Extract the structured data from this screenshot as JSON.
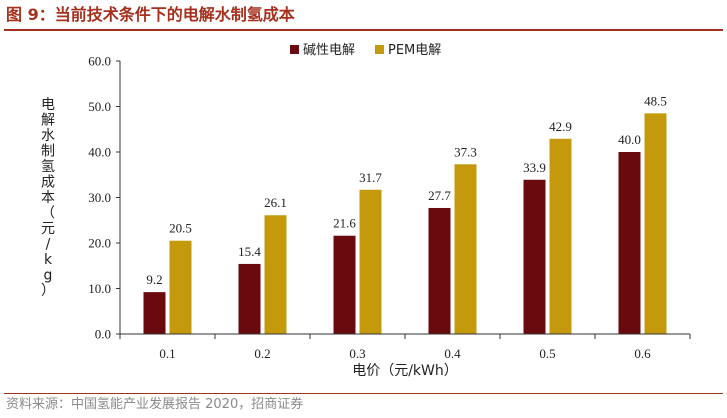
{
  "figure": {
    "title": "图 9：当前技术条件下的电解水制氢成本",
    "source": "资料来源：中国氢能产业发展报告 2020，招商证券"
  },
  "colors": {
    "accent": "#a5301e",
    "series_alkaline": "#6b0a0e",
    "series_pem": "#c49a0c"
  },
  "chart_data": {
    "type": "bar",
    "categories": [
      "0.1",
      "0.2",
      "0.3",
      "0.4",
      "0.5",
      "0.6"
    ],
    "series": [
      {
        "name": "碱性电解",
        "values": [
          9.2,
          15.4,
          21.6,
          27.7,
          33.9,
          40.0
        ]
      },
      {
        "name": "PEM电解",
        "values": [
          20.5,
          26.1,
          31.7,
          37.3,
          42.9,
          48.5
        ]
      }
    ],
    "value_labels": [
      [
        "9.2",
        "15.4",
        "21.6",
        "27.7",
        "33.9",
        "40.0"
      ],
      [
        "20.5",
        "26.1",
        "31.7",
        "37.3",
        "42.9",
        "48.5"
      ]
    ],
    "xlabel": "电价（元/kWh）",
    "ylabel": "电解水制氢成本（元/kg）",
    "ylim": [
      0,
      60
    ],
    "yticks": [
      "0.0",
      "10.0",
      "20.0",
      "30.0",
      "40.0",
      "50.0",
      "60.0"
    ],
    "grid": false,
    "legend_position": "top-center"
  }
}
